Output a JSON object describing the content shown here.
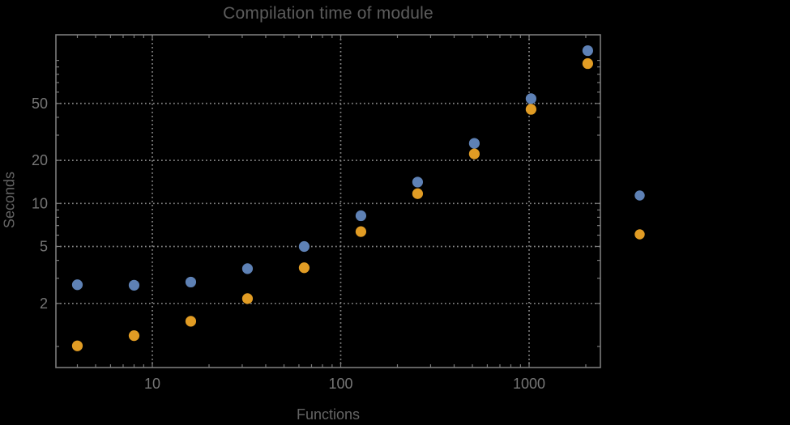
{
  "chart": {
    "title": "Compilation time of module",
    "xlabel": "Functions",
    "ylabel": "Seconds"
  },
  "chart_data": {
    "type": "scatter",
    "title": "Compilation time of module",
    "xlabel": "Functions",
    "ylabel": "Seconds",
    "xscale": "log",
    "yscale": "log",
    "grid": "dotted",
    "xlim": [
      3.08,
      2360
    ],
    "ylim": [
      0.71,
      151
    ],
    "x": [
      4,
      8,
      16,
      32,
      64,
      128,
      256,
      512,
      1024,
      2048
    ],
    "series": [
      {
        "key": "blue",
        "color": "#5e81b5",
        "values": [
          2.7,
          2.68,
          2.82,
          3.5,
          5.0,
          8.2,
          14.1,
          26.3,
          54,
          117
        ]
      },
      {
        "key": "orange",
        "color": "#e19c24",
        "values": [
          1.01,
          1.19,
          1.5,
          2.16,
          3.55,
          6.35,
          11.7,
          22.2,
          45.5,
          95
        ]
      }
    ],
    "xticks": [
      {
        "value": 10,
        "label": "10"
      },
      {
        "value": 100,
        "label": "100"
      },
      {
        "value": 1000,
        "label": "1000"
      }
    ],
    "yticks": [
      {
        "value": 2,
        "label": "2"
      },
      {
        "value": 5,
        "label": "5"
      },
      {
        "value": 10,
        "label": "10"
      },
      {
        "value": 20,
        "label": "20"
      },
      {
        "value": 50,
        "label": "50"
      }
    ],
    "legend": {
      "position": "outside-right",
      "labels_visible": false,
      "markers": [
        {
          "series": "blue",
          "color": "#5e81b5"
        },
        {
          "series": "orange",
          "color": "#e19c24"
        }
      ]
    }
  },
  "colors": {
    "background": "#000000",
    "frame": "#7a7a7a",
    "grid": "#858585",
    "tick_labels": "#767676",
    "title": "#5c5c5c",
    "axis_labels": "#646464"
  }
}
